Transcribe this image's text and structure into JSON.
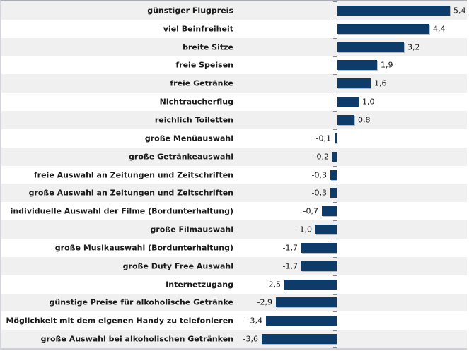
{
  "chart_data": {
    "type": "bar",
    "orientation": "horizontal",
    "title": "",
    "xlabel": "",
    "ylabel": "",
    "grid": false,
    "legend": false,
    "categories": [
      "günstiger Flugpreis",
      "viel Beinfreiheit",
      "breite Sitze",
      "freie Speisen",
      "freie Getränke",
      "Nichtraucherflug",
      "reichlich Toiletten",
      "große Menüauswahl",
      "große Getränkeauswahl",
      "freie Auswahl an Zeitungen und Zeitschriften",
      "große Auswahl an Zeitungen und Zeitschriften",
      "individuelle Auswahl der Filme (Bordunterhaltung)",
      "große Filmauswahl",
      "große Musikauswahl (Bordunterhaltung)",
      "große Duty Free Auswahl",
      "Internetzugang",
      "günstige Preise für alkoholische Getränke",
      "Möglichkeit mit dem eigenen Handy zu telefonieren",
      "große Auswahl bei alkoholischen Getränken"
    ],
    "values": [
      5.4,
      4.4,
      3.2,
      1.9,
      1.6,
      1.0,
      0.8,
      -0.1,
      -0.2,
      -0.3,
      -0.3,
      -0.7,
      -1.0,
      -1.7,
      -1.7,
      -2.5,
      -2.9,
      -3.4,
      -3.6
    ],
    "value_labels": [
      "5,4",
      "4,4",
      "3,2",
      "1,9",
      "1,6",
      "1,0",
      "0,8",
      "-0,1",
      "-0,2",
      "-0,3",
      "-0,3",
      "-0,7",
      "-1,0",
      "-1,7",
      "-1,7",
      "-2,5",
      "-2,9",
      "-3,4",
      "-3,6"
    ],
    "colors": {
      "bar": "#0d3c6b",
      "row_band_odd": "#f0f0f0",
      "row_band_even": "#ffffff",
      "axis": "#85888d",
      "category_text": "#1a1a1a",
      "value_text": "#141414"
    }
  }
}
